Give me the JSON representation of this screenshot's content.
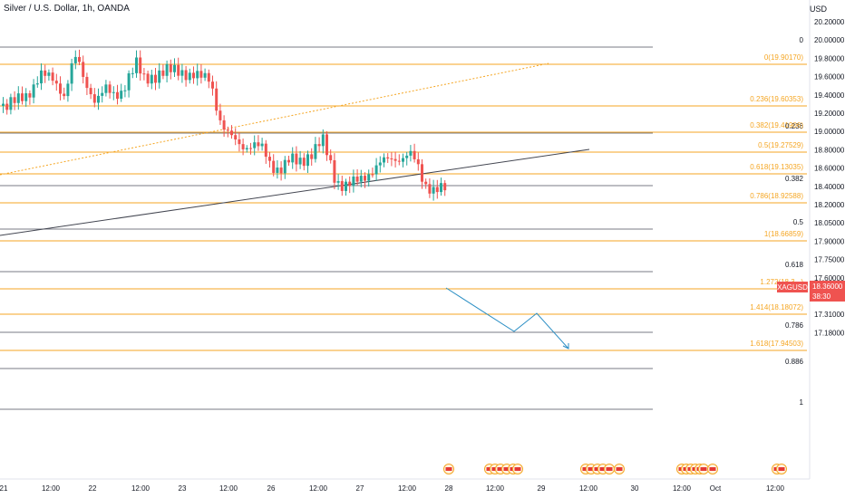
{
  "chart_data": {
    "type": "candlestick",
    "title": "Silver / U.S. Dollar, 1h, OANDA",
    "ylabel": "USD",
    "ylim": [
      17.18,
      20.2
    ],
    "y_ticks": [
      "20.20000",
      "20.00000",
      "19.80000",
      "19.60000",
      "19.40000",
      "19.20000",
      "19.00000",
      "18.80000",
      "18.60000",
      "18.40000",
      "18.20000",
      "18.05000",
      "17.90000",
      "17.75000",
      "17.60000",
      "17.45000",
      "17.31000",
      "17.18000"
    ],
    "x_ticks": [
      "21",
      "12:00",
      "22",
      "12:00",
      "23",
      "12:00",
      "26",
      "12:00",
      "27",
      "12:00",
      "28",
      "12:00",
      "29",
      "12:00",
      "30",
      "12:00",
      "Oct",
      "12:00"
    ],
    "colors": {
      "up": "#26a69a",
      "down": "#ef5350",
      "fib": "#f5a623",
      "gray": "#787b86",
      "trend": "#131722",
      "projection": "#2a8ec4",
      "price_label": "#ef5350"
    },
    "last_price": {
      "symbol": "XAGUSD",
      "value": "18.36000",
      "countdown": "38:30"
    },
    "fib_extension": [
      {
        "label": "0(19.90170)"
      },
      {
        "label": "0.236(19.60353)"
      },
      {
        "label": "0.382(19.41906)"
      },
      {
        "label": "0.5(19.27529)"
      },
      {
        "label": "0.618(19.13035)"
      },
      {
        "label": "0.786(18.92588)"
      },
      {
        "label": "1(18.66859)"
      },
      {
        "label": "1.272(18.3...)"
      },
      {
        "label": "1.414(18.18072)"
      },
      {
        "label": "1.618(17.94503)"
      }
    ],
    "fib_retracement": [
      {
        "label": "0"
      },
      {
        "label": "0.236"
      },
      {
        "label": "0.382"
      },
      {
        "label": "0.5"
      },
      {
        "label": "0.618"
      },
      {
        "label": "0.786"
      },
      {
        "label": "0.886"
      },
      {
        "label": "1"
      }
    ],
    "event_markers_flag": "us-flag-icon"
  }
}
